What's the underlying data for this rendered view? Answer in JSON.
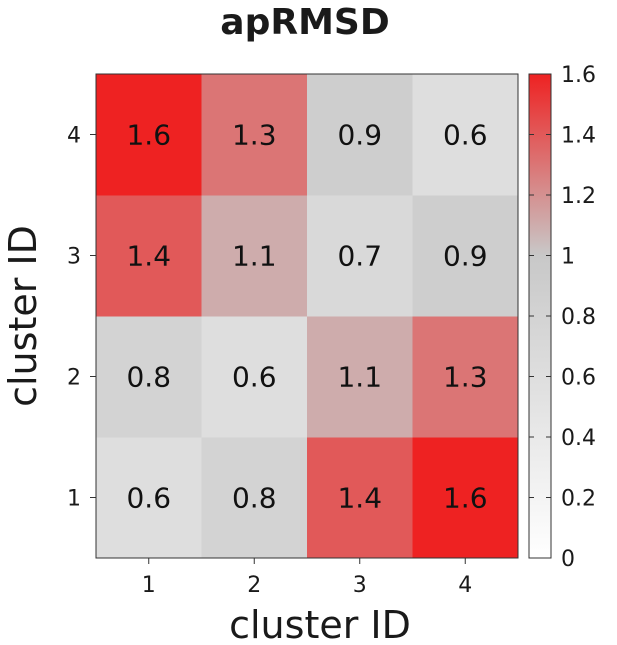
{
  "chart_data": {
    "type": "heatmap",
    "title": "apRMSD",
    "xlabel": "cluster ID",
    "ylabel": "cluster ID",
    "x_categories": [
      "1",
      "2",
      "3",
      "4"
    ],
    "y_categories": [
      "1",
      "2",
      "3",
      "4"
    ],
    "values": [
      [
        0.6,
        0.8,
        1.4,
        1.6
      ],
      [
        0.8,
        0.6,
        1.1,
        1.3
      ],
      [
        1.4,
        1.1,
        0.7,
        0.9
      ],
      [
        1.6,
        1.3,
        0.9,
        0.6
      ]
    ],
    "cell_labels": [
      [
        "0.6",
        "0.8",
        "1.4",
        "1.6"
      ],
      [
        "0.8",
        "0.6",
        "1.1",
        "1.3"
      ],
      [
        "1.4",
        "1.1",
        "0.7",
        "0.9"
      ],
      [
        "1.6",
        "1.3",
        "0.9",
        "0.6"
      ]
    ],
    "zlim": [
      0,
      1.6
    ],
    "colorbar_ticks": [
      0,
      0.2,
      0.4,
      0.6,
      0.8,
      1,
      1.2,
      1.4,
      1.6
    ],
    "colorbar_tick_labels": [
      "0",
      "0.2",
      "0.4",
      "0.6",
      "0.8",
      "1",
      "1.2",
      "1.4",
      "1.6"
    ],
    "colormap": {
      "low": "#ffffff",
      "mid": "#c8c8c8",
      "mid_value": 1.0,
      "high": "#ee2222"
    },
    "grid": false,
    "legend": "colorbar-right"
  }
}
